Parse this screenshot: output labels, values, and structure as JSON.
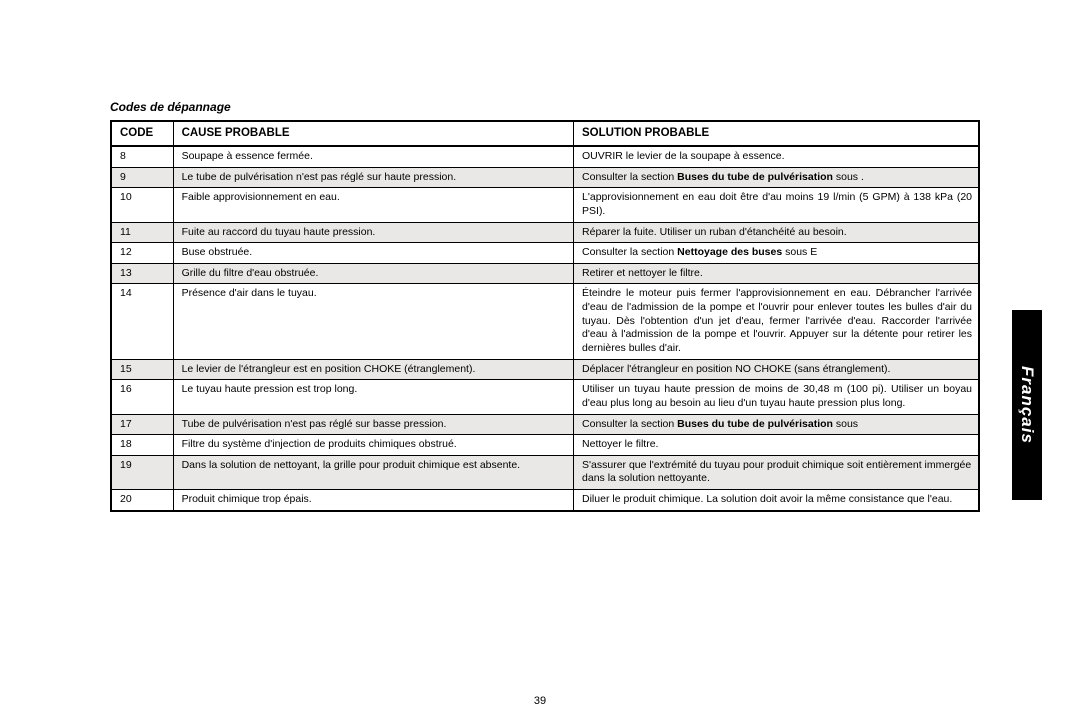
{
  "section_title": "Codes de dépannage",
  "headers": {
    "code": "CODE",
    "cause": "CAUSE PROBABLE",
    "solution": "SOLUTION PROBABLE"
  },
  "side_tab": "Français",
  "page_number": "39",
  "rows": [
    {
      "code": "8",
      "shade": false,
      "cause": "Soupape à essence fermée.",
      "solution_plain": "OUVRIR le levier de la soupape à essence.",
      "justify": false
    },
    {
      "code": "9",
      "shade": true,
      "cause": "Le tube de pulvérisation n'est pas réglé sur haute pression.",
      "solution_pre": "Consulter la section ",
      "solution_bold": "Buses du tube de pulvérisation",
      "solution_post": " sous .",
      "justify": true
    },
    {
      "code": "10",
      "shade": false,
      "cause": "Faible approvisionnement en eau.",
      "solution_plain": "L'approvisionnement en eau doit être d'au moins 19 l/min (5 GPM) à 138 kPa (20 PSI).",
      "justify": true
    },
    {
      "code": "11",
      "shade": true,
      "cause": "Fuite au raccord du tuyau haute pression.",
      "solution_plain": "Réparer la fuite. Utiliser un ruban d'étanchéité au besoin.",
      "justify": false
    },
    {
      "code": "12",
      "shade": false,
      "cause": "Buse obstruée.",
      "solution_pre": "Consulter la section ",
      "solution_bold": "Nettoyage des buses",
      "solution_post": " sous E",
      "justify": false
    },
    {
      "code": "13",
      "shade": true,
      "cause": "Grille du filtre d'eau obstruée.",
      "solution_plain": "Retirer et nettoyer le filtre.",
      "justify": false
    },
    {
      "code": "14",
      "shade": false,
      "cause": "Présence d'air dans le tuyau.",
      "solution_plain": "Éteindre le moteur puis fermer l'approvisionnement en eau. Débrancher l'arrivée d'eau de l'admission de la pompe et l'ouvrir pour enlever toutes les bulles d'air du tuyau. Dès l'obtention d'un jet d'eau, fermer l'arrivée d'eau. Raccorder l'arrivée d'eau à l'admission de la pompe et l'ouvrir. Appuyer sur la détente pour retirer les dernières bulles d'air.",
      "justify": true
    },
    {
      "code": "15",
      "shade": true,
      "cause": "Le levier de l'étrangleur est en position CHOKE (étranglement).",
      "solution_plain": "Déplacer l'étrangleur en position NO CHOKE (sans étranglement).",
      "justify": false
    },
    {
      "code": "16",
      "shade": false,
      "cause": "Le tuyau haute pression est trop long.",
      "solution_plain": "Utiliser un tuyau haute pression de moins de 30,48 m (100 pi). Utiliser un boyau d'eau plus long au besoin au lieu d'un tuyau haute pression plus long.",
      "justify": true
    },
    {
      "code": "17",
      "shade": true,
      "cause": "Tube de pulvérisation n'est pas réglé sur basse pression.",
      "solution_pre": "Consulter la section ",
      "solution_bold": "Buses du tube de pulvérisation",
      "solution_post": " sous",
      "justify": true
    },
    {
      "code": "18",
      "shade": false,
      "cause": "Filtre du système d'injection de produits chimiques obstrué.",
      "solution_plain": "Nettoyer le filtre.",
      "justify": false
    },
    {
      "code": "19",
      "shade": true,
      "cause_justify": true,
      "cause": "Dans la solution de nettoyant, la grille pour produit chimique est absente.",
      "solution_plain": "S'assurer que l'extrémité du tuyau pour produit chimique soit entièrement immergée dans la solution nettoyante.",
      "justify": false
    },
    {
      "code": "20",
      "shade": false,
      "cause": "Produit chimique trop épais.",
      "solution_plain": "Diluer le produit chimique. La solution doit avoir la même consistance que l'eau.",
      "justify": false
    }
  ]
}
